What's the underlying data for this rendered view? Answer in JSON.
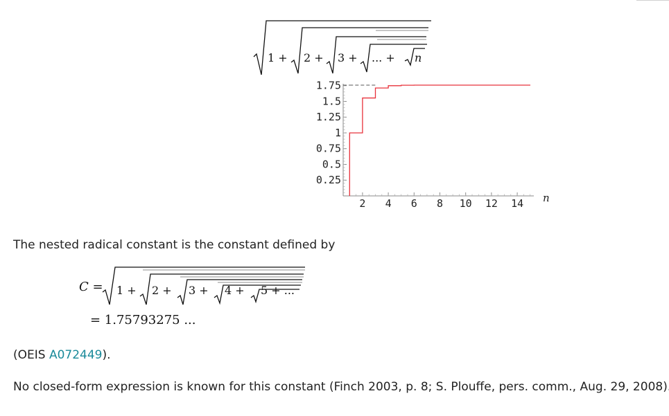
{
  "top_formula": {
    "terms": [
      "1 +",
      "2 +",
      "3 +",
      "... +",
      "n"
    ]
  },
  "chart_data": {
    "type": "line",
    "step": true,
    "x": [
      1,
      2,
      3,
      4,
      5,
      6,
      7,
      8,
      9,
      10,
      11,
      12,
      13,
      14,
      15
    ],
    "y": [
      1.0,
      1.5538,
      1.7122,
      1.7487,
      1.7565,
      1.7577,
      1.7579,
      1.7579,
      1.7579,
      1.7579,
      1.7579,
      1.7579,
      1.7579,
      1.7579,
      1.7579
    ],
    "xlabel": "n",
    "ylabel": "",
    "title": "",
    "x_ticks": [
      "2",
      "4",
      "6",
      "8",
      "10",
      "12",
      "14"
    ],
    "x_tick_values": [
      2,
      4,
      6,
      8,
      10,
      12,
      14
    ],
    "y_ticks": [
      "0.25",
      "0.5",
      "0.75",
      "1",
      "1.25",
      "1.5",
      "1.75"
    ],
    "y_tick_values": [
      0.25,
      0.5,
      0.75,
      1,
      1.25,
      1.5,
      1.75
    ],
    "xlim": [
      0.5,
      15
    ],
    "ylim": [
      0,
      1.7579
    ],
    "asymptote": 1.7579,
    "line_color": "#e8303a",
    "asymptote_color": "#555555",
    "grid": false
  },
  "paragraphs": {
    "intro": "The nested radical constant is the constant defined by",
    "oeis_prefix": "(OEIS ",
    "oeis_link": "A072449",
    "oeis_suffix": ").",
    "closing": "No closed-form expression is known for this constant (Finch 2003, p. 8; S. Plouffe, pers. comm., Aug. 29, 2008)."
  },
  "definition": {
    "lhs": "C =",
    "terms": [
      "1 +",
      "2 +",
      "3 +",
      "4 +",
      "5 + ..."
    ],
    "value": "= 1.75793275 ..."
  },
  "colors": {
    "link": "#1a8a9a",
    "text": "#222222"
  }
}
